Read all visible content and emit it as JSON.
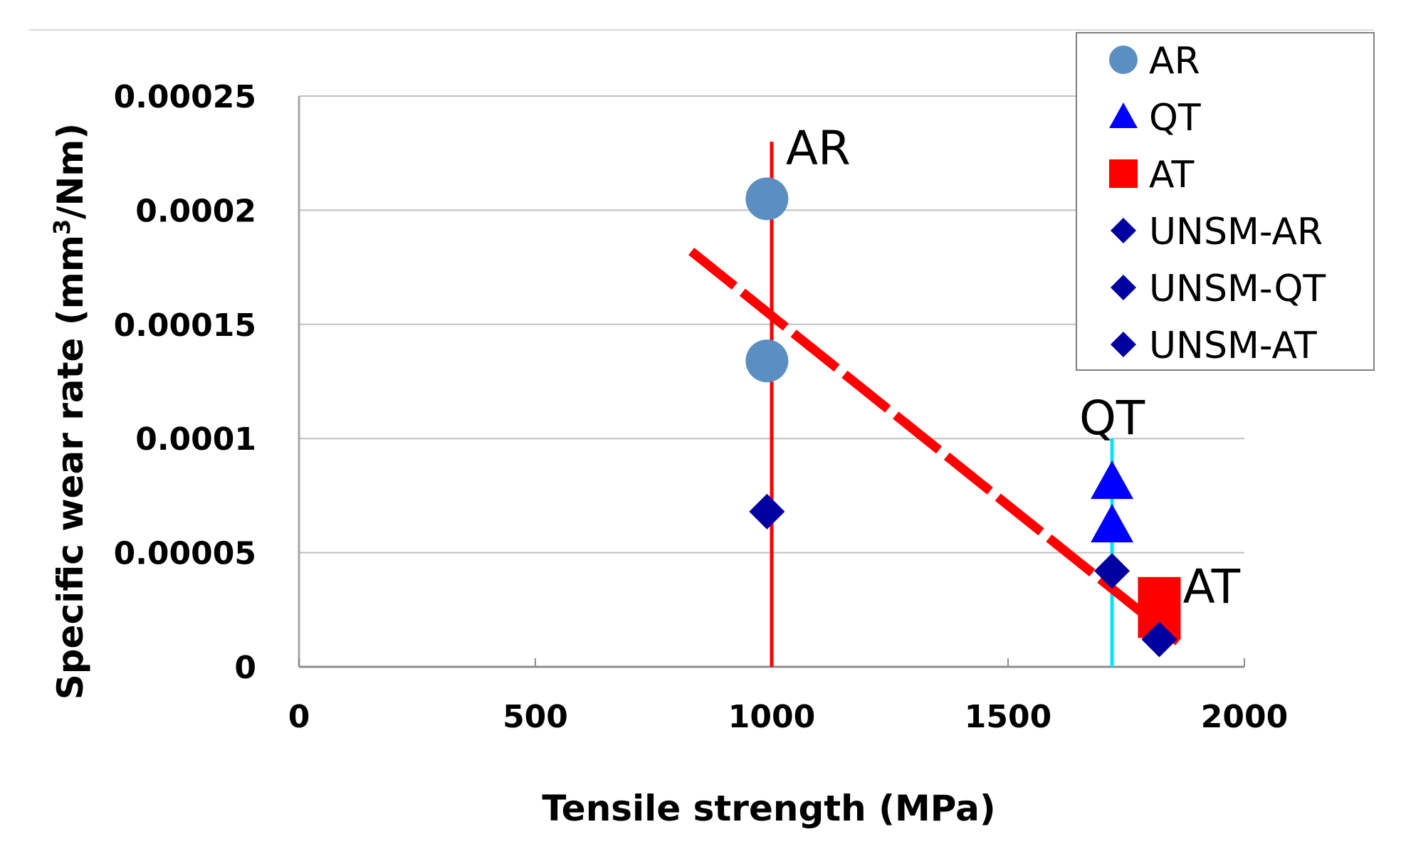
{
  "chart_data": {
    "type": "scatter",
    "title": "",
    "xlabel": "Tensile strength (MPa)",
    "ylabel_main": "Specific wear rate (mm",
    "ylabel_sup": "3",
    "ylabel_tail": "/Nm)",
    "xlim": [
      0,
      2000
    ],
    "ylim": [
      0,
      0.00025
    ],
    "x_ticks": [
      0,
      500,
      1000,
      1500,
      2000
    ],
    "x_tick_labels": [
      "0",
      "500",
      "1000",
      "1500",
      "2000"
    ],
    "y_ticks": [
      0,
      5e-05,
      0.0001,
      0.00015,
      0.0002,
      0.00025
    ],
    "y_tick_labels": [
      "0",
      "0.00005",
      "0.0001",
      "0.00015",
      "0.0002",
      "0.00025"
    ],
    "grid": "horizontal",
    "legend_position": "top-right",
    "series": [
      {
        "name": "AR",
        "marker": "circle",
        "color": "#5b8fc1",
        "points": [
          [
            990,
            0.000205
          ],
          [
            990,
            0.000134
          ]
        ]
      },
      {
        "name": "QT",
        "marker": "triangle",
        "color": "#0000ff",
        "points": [
          [
            1720,
            8.1e-05
          ],
          [
            1720,
            6.2e-05
          ]
        ]
      },
      {
        "name": "AT",
        "marker": "square",
        "color": "#ff0000",
        "points": [
          [
            1820,
            3e-05
          ],
          [
            1820,
            2.2e-05
          ]
        ]
      },
      {
        "name": "UNSM-AR",
        "marker": "diamond",
        "color": "#0000a0",
        "points": [
          [
            990,
            6.8e-05
          ]
        ]
      },
      {
        "name": "UNSM-QT",
        "marker": "diamond",
        "color": "#0000a0",
        "points": [
          [
            1720,
            4.2e-05
          ]
        ]
      },
      {
        "name": "UNSM-AT",
        "marker": "diamond",
        "color": "#0000a0",
        "points": [
          [
            1820,
            1.2e-05
          ]
        ]
      }
    ],
    "reference_lines": [
      {
        "label": "AR",
        "x": 1000,
        "y_range": [
          0,
          0.00023
        ],
        "color": "#ff0000"
      },
      {
        "label": "QT",
        "x": 1720,
        "y_range": [
          0,
          0.0001
        ],
        "color": "#00e5ff"
      }
    ],
    "trend_line": {
      "style": "dashed",
      "color": "#ff0000",
      "from": [
        830,
        0.000182
      ],
      "to": [
        1860,
        1.1e-05
      ]
    },
    "annotations": [
      {
        "text": "AR",
        "x": 1030,
        "y": 0.00022
      },
      {
        "text": "QT",
        "x": 1720,
        "y": 0.000102
      },
      {
        "text": "AT",
        "x": 1870,
        "y": 2.8e-05
      }
    ]
  }
}
